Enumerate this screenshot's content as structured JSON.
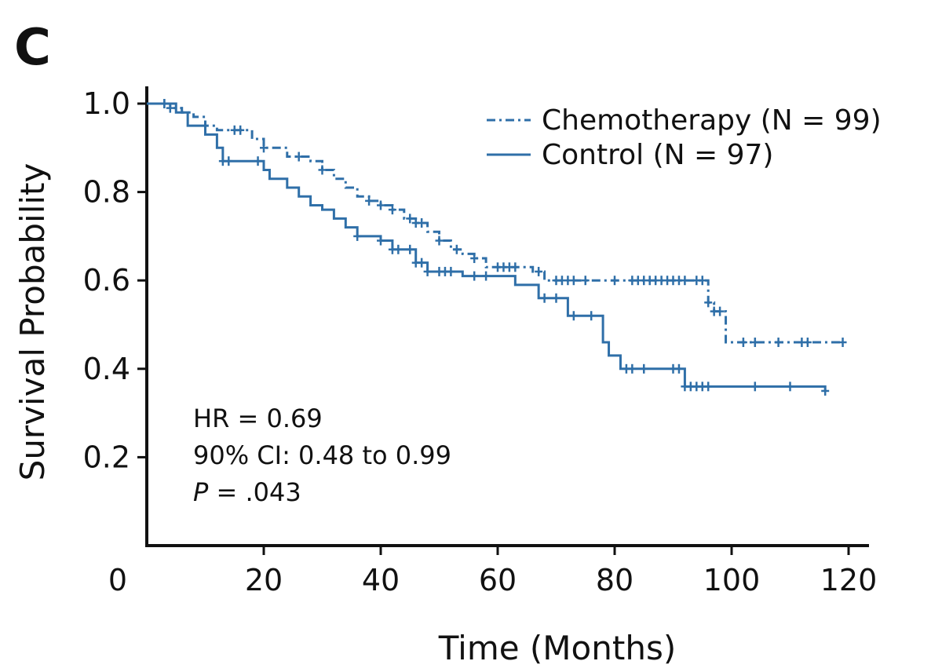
{
  "panel_label": "C",
  "stats": {
    "hr": "HR = 0.69",
    "ci": "90% CI: 0.48 to 0.99",
    "p_symbol": "P",
    "p_value": " = .043"
  },
  "chart_data": {
    "type": "line",
    "xlabel": "Time (Months)",
    "ylabel": "Survival Probability",
    "xlim": [
      0,
      120
    ],
    "ylim": [
      0,
      1.0
    ],
    "xticks": [
      0,
      20,
      40,
      60,
      80,
      100,
      120
    ],
    "xtick_labels": [
      "0",
      "20",
      "40",
      "60",
      "80",
      "100",
      "120"
    ],
    "yticks": [
      0.2,
      0.4,
      0.6,
      0.8,
      1.0
    ],
    "ytick_labels": [
      "0.2",
      "0.4",
      "0.6",
      "0.8",
      "1.0"
    ],
    "grid": false,
    "legend_position": "top-right",
    "step": true,
    "series": [
      {
        "name": "Chemotherapy (N = 99)",
        "color": "#2f6fa8",
        "style": "dashdot",
        "x": [
          0,
          4,
          6,
          8,
          10,
          12,
          18,
          20,
          24,
          28,
          30,
          32,
          34,
          36,
          38,
          40,
          42,
          44,
          46,
          48,
          50,
          52,
          54,
          56,
          58,
          66,
          68,
          96,
          97,
          99,
          119
        ],
        "y": [
          1.0,
          0.99,
          0.98,
          0.97,
          0.95,
          0.94,
          0.92,
          0.9,
          0.88,
          0.87,
          0.85,
          0.83,
          0.81,
          0.79,
          0.78,
          0.77,
          0.76,
          0.74,
          0.73,
          0.71,
          0.69,
          0.67,
          0.66,
          0.65,
          0.63,
          0.62,
          0.6,
          0.55,
          0.53,
          0.46,
          0.46
        ],
        "censor_x": [
          3,
          4,
          15,
          16,
          20,
          26,
          30,
          38,
          40,
          42,
          45,
          46,
          47,
          50,
          53,
          56,
          60,
          61,
          62,
          63,
          67,
          70,
          71,
          72,
          73,
          75,
          80,
          83,
          84,
          85,
          86,
          87,
          88,
          89,
          90,
          91,
          92,
          94,
          95,
          96,
          97,
          98,
          102,
          104,
          108,
          112,
          113,
          119
        ]
      },
      {
        "name": "Control (N = 97)",
        "color": "#2f6fa8",
        "style": "solid",
        "x": [
          0,
          5,
          7,
          10,
          12,
          13,
          20,
          21,
          24,
          26,
          28,
          30,
          32,
          34,
          36,
          40,
          42,
          46,
          48,
          54,
          63,
          67,
          72,
          78,
          79,
          81,
          92,
          116
        ],
        "y": [
          1.0,
          0.98,
          0.95,
          0.93,
          0.9,
          0.87,
          0.85,
          0.83,
          0.81,
          0.79,
          0.77,
          0.76,
          0.74,
          0.72,
          0.7,
          0.69,
          0.67,
          0.64,
          0.62,
          0.61,
          0.59,
          0.56,
          0.52,
          0.46,
          0.43,
          0.4,
          0.36,
          0.35
        ],
        "censor_x": [
          3,
          13,
          14,
          19,
          36,
          40,
          42,
          43,
          45,
          46,
          47,
          48,
          50,
          51,
          52,
          56,
          58,
          68,
          70,
          73,
          76,
          82,
          83,
          85,
          90,
          91,
          92,
          93,
          94,
          95,
          96,
          104,
          110,
          116
        ]
      }
    ]
  }
}
